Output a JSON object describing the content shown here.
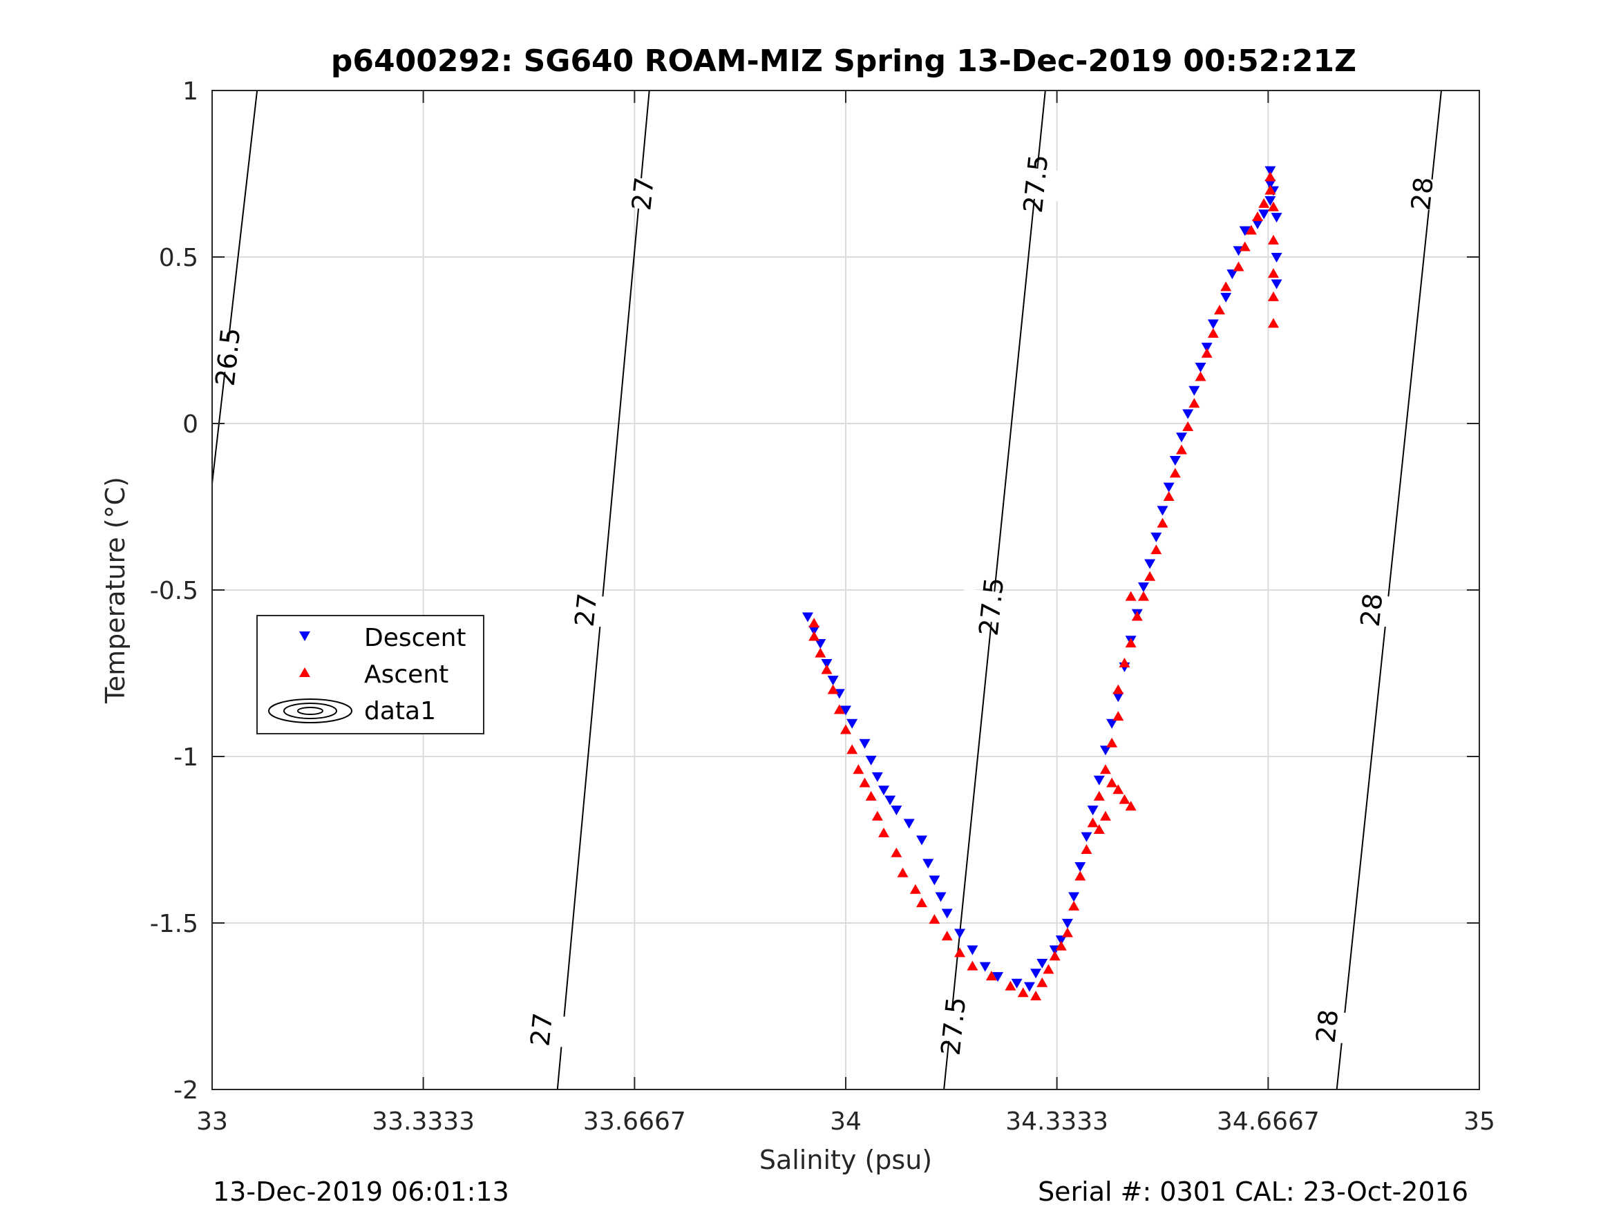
{
  "chart_data": {
    "type": "scatter",
    "title": "p6400292: SG640 ROAM-MIZ Spring 13-Dec-2019 00:52:21Z",
    "xlabel": "Salinity (psu)",
    "ylabel": "Temperature (°C)",
    "xlim": [
      33,
      35
    ],
    "ylim": [
      -2,
      1
    ],
    "xticks": [
      33,
      33.3333,
      33.6667,
      34,
      34.3333,
      34.6667,
      35
    ],
    "xtick_labels": [
      "33",
      "33.3333",
      "33.6667",
      "34",
      "34.3333",
      "34.6667",
      "35"
    ],
    "yticks": [
      -2,
      -1.5,
      -1,
      -0.5,
      0,
      0.5,
      1
    ],
    "ytick_labels": [
      "-2",
      "-1.5",
      "-1",
      "-0.5",
      "0",
      "0.5",
      "1"
    ],
    "grid": true,
    "legend_position": "left-middle",
    "legend": [
      "Descent",
      "Ascent",
      "data1"
    ],
    "series": [
      {
        "name": "Descent",
        "marker": "triangle-down",
        "color": "#0000ff",
        "points": [
          [
            33.94,
            -0.58
          ],
          [
            33.95,
            -0.62
          ],
          [
            33.96,
            -0.66
          ],
          [
            33.97,
            -0.72
          ],
          [
            33.98,
            -0.77
          ],
          [
            33.99,
            -0.81
          ],
          [
            34.0,
            -0.86
          ],
          [
            34.01,
            -0.9
          ],
          [
            34.03,
            -0.96
          ],
          [
            34.04,
            -1.01
          ],
          [
            34.05,
            -1.06
          ],
          [
            34.06,
            -1.1
          ],
          [
            34.07,
            -1.13
          ],
          [
            34.08,
            -1.16
          ],
          [
            34.1,
            -1.2
          ],
          [
            34.12,
            -1.25
          ],
          [
            34.13,
            -1.32
          ],
          [
            34.14,
            -1.37
          ],
          [
            34.15,
            -1.42
          ],
          [
            34.16,
            -1.47
          ],
          [
            34.18,
            -1.53
          ],
          [
            34.2,
            -1.58
          ],
          [
            34.22,
            -1.63
          ],
          [
            34.24,
            -1.66
          ],
          [
            34.27,
            -1.68
          ],
          [
            34.29,
            -1.69
          ],
          [
            34.3,
            -1.65
          ],
          [
            34.31,
            -1.62
          ],
          [
            34.33,
            -1.58
          ],
          [
            34.34,
            -1.55
          ],
          [
            34.35,
            -1.5
          ],
          [
            34.36,
            -1.42
          ],
          [
            34.37,
            -1.33
          ],
          [
            34.38,
            -1.24
          ],
          [
            34.39,
            -1.16
          ],
          [
            34.4,
            -1.07
          ],
          [
            34.41,
            -0.98
          ],
          [
            34.42,
            -0.9
          ],
          [
            34.43,
            -0.82
          ],
          [
            34.44,
            -0.73
          ],
          [
            34.45,
            -0.65
          ],
          [
            34.46,
            -0.57
          ],
          [
            34.47,
            -0.49
          ],
          [
            34.48,
            -0.42
          ],
          [
            34.49,
            -0.34
          ],
          [
            34.5,
            -0.26
          ],
          [
            34.51,
            -0.19
          ],
          [
            34.52,
            -0.11
          ],
          [
            34.53,
            -0.04
          ],
          [
            34.54,
            0.03
          ],
          [
            34.55,
            0.1
          ],
          [
            34.56,
            0.17
          ],
          [
            34.57,
            0.23
          ],
          [
            34.58,
            0.3
          ],
          [
            34.6,
            0.38
          ],
          [
            34.61,
            0.45
          ],
          [
            34.62,
            0.52
          ],
          [
            34.63,
            0.58
          ],
          [
            34.65,
            0.6
          ],
          [
            34.66,
            0.63
          ],
          [
            34.67,
            0.67
          ],
          [
            34.67,
            0.72
          ],
          [
            34.67,
            0.76
          ],
          [
            34.675,
            0.7
          ],
          [
            34.68,
            0.62
          ],
          [
            34.68,
            0.5
          ],
          [
            34.68,
            0.42
          ]
        ]
      },
      {
        "name": "Ascent",
        "marker": "triangle-up",
        "color": "#ff0000",
        "points": [
          [
            33.95,
            -0.6
          ],
          [
            33.95,
            -0.64
          ],
          [
            33.96,
            -0.69
          ],
          [
            33.97,
            -0.74
          ],
          [
            33.98,
            -0.8
          ],
          [
            33.99,
            -0.86
          ],
          [
            34.0,
            -0.92
          ],
          [
            34.01,
            -0.98
          ],
          [
            34.02,
            -1.04
          ],
          [
            34.03,
            -1.08
          ],
          [
            34.04,
            -1.12
          ],
          [
            34.05,
            -1.18
          ],
          [
            34.06,
            -1.23
          ],
          [
            34.08,
            -1.29
          ],
          [
            34.09,
            -1.35
          ],
          [
            34.11,
            -1.4
          ],
          [
            34.12,
            -1.44
          ],
          [
            34.14,
            -1.49
          ],
          [
            34.16,
            -1.54
          ],
          [
            34.18,
            -1.59
          ],
          [
            34.2,
            -1.63
          ],
          [
            34.23,
            -1.66
          ],
          [
            34.26,
            -1.69
          ],
          [
            34.28,
            -1.71
          ],
          [
            34.3,
            -1.72
          ],
          [
            34.31,
            -1.68
          ],
          [
            34.32,
            -1.64
          ],
          [
            34.33,
            -1.6
          ],
          [
            34.34,
            -1.57
          ],
          [
            34.35,
            -1.53
          ],
          [
            34.36,
            -1.45
          ],
          [
            34.37,
            -1.36
          ],
          [
            34.38,
            -1.28
          ],
          [
            34.39,
            -1.2
          ],
          [
            34.4,
            -1.12
          ],
          [
            34.41,
            -1.04
          ],
          [
            34.42,
            -0.96
          ],
          [
            34.43,
            -0.88
          ],
          [
            34.43,
            -0.8
          ],
          [
            34.44,
            -0.72
          ],
          [
            34.45,
            -0.66
          ],
          [
            34.46,
            -0.58
          ],
          [
            34.45,
            -0.52
          ],
          [
            34.47,
            -0.52
          ],
          [
            34.48,
            -0.46
          ],
          [
            34.49,
            -0.38
          ],
          [
            34.5,
            -0.3
          ],
          [
            34.51,
            -0.22
          ],
          [
            34.52,
            -0.15
          ],
          [
            34.53,
            -0.08
          ],
          [
            34.54,
            -0.01
          ],
          [
            34.55,
            0.06
          ],
          [
            34.56,
            0.14
          ],
          [
            34.57,
            0.21
          ],
          [
            34.58,
            0.27
          ],
          [
            34.59,
            0.34
          ],
          [
            34.6,
            0.41
          ],
          [
            34.62,
            0.47
          ],
          [
            34.63,
            0.53
          ],
          [
            34.64,
            0.58
          ],
          [
            34.65,
            0.62
          ],
          [
            34.66,
            0.66
          ],
          [
            34.67,
            0.7
          ],
          [
            34.67,
            0.74
          ],
          [
            34.675,
            0.65
          ],
          [
            34.675,
            0.55
          ],
          [
            34.675,
            0.45
          ],
          [
            34.675,
            0.38
          ],
          [
            34.675,
            0.3
          ],
          [
            34.42,
            -1.08
          ],
          [
            34.43,
            -1.1
          ],
          [
            34.44,
            -1.13
          ],
          [
            34.45,
            -1.15
          ],
          [
            34.41,
            -1.18
          ],
          [
            34.4,
            -1.22
          ]
        ]
      }
    ],
    "contour_labels": [
      {
        "value": "26.5",
        "x": 33.025,
        "y": 0.2
      },
      {
        "value": "27",
        "x": 33.68,
        "y": 0.69
      },
      {
        "value": "27",
        "x": 33.59,
        "y": -0.56
      },
      {
        "value": "27",
        "x": 33.52,
        "y": -1.82
      },
      {
        "value": "27.5",
        "x": 34.3,
        "y": 0.72
      },
      {
        "value": "27.5",
        "x": 34.23,
        "y": -0.55
      },
      {
        "value": "27.5",
        "x": 34.17,
        "y": -1.81
      },
      {
        "value": "28",
        "x": 34.91,
        "y": 0.69
      },
      {
        "value": "28",
        "x": 34.83,
        "y": -0.56
      },
      {
        "value": "28",
        "x": 34.76,
        "y": -1.81
      }
    ]
  },
  "footer": {
    "left": "13-Dec-2019 06:01:13",
    "right": "Serial #: 0301  CAL: 23-Oct-2016"
  }
}
